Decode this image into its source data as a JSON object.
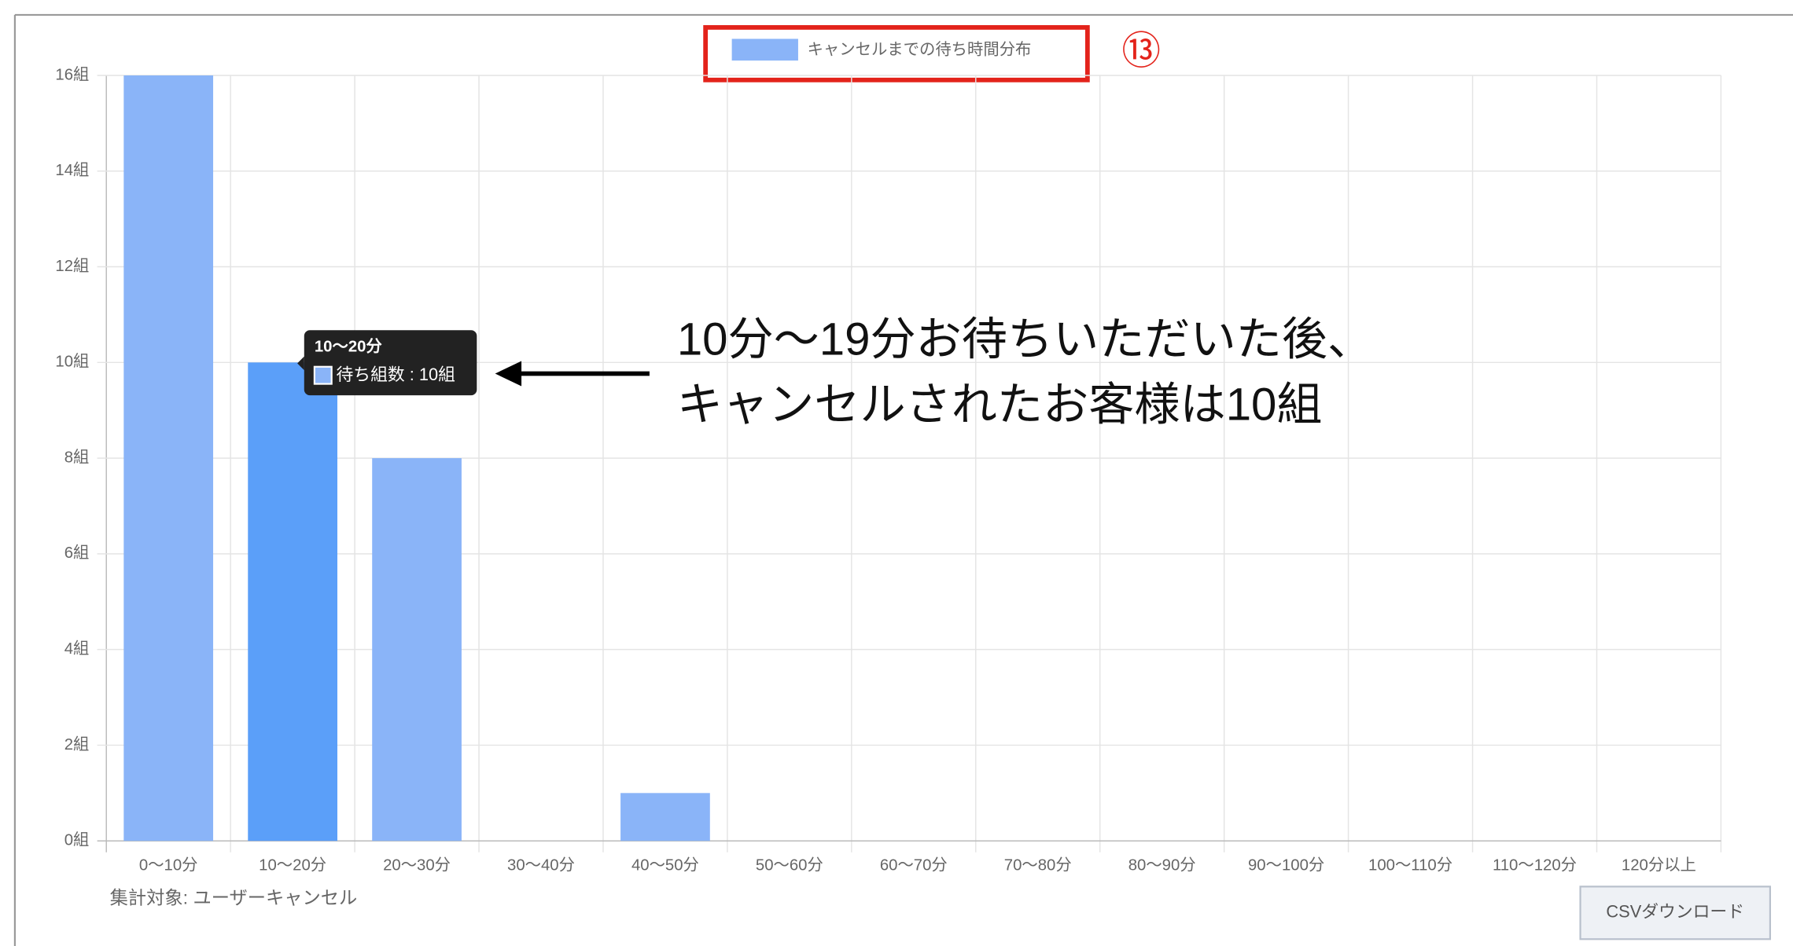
{
  "chart_data": {
    "type": "bar",
    "legend": "キャンセルまでの待ち時間分布",
    "legend_marker": "⑬",
    "categories": [
      "0〜10分",
      "10〜20分",
      "20〜30分",
      "30〜40分",
      "40〜50分",
      "50〜60分",
      "60〜70分",
      "70〜80分",
      "80〜90分",
      "90〜100分",
      "100〜110分",
      "110〜120分",
      "120分以上"
    ],
    "values": [
      16,
      10,
      8,
      0,
      1,
      0,
      0,
      0,
      0,
      0,
      0,
      0,
      0
    ],
    "color": "#8ab4f8",
    "highlight": {
      "index": 1,
      "color": "#5b9ff9"
    },
    "ylim": [
      0,
      16
    ],
    "yticks": [
      {
        "value": 0,
        "label": "0組"
      },
      {
        "value": 2,
        "label": "2組"
      },
      {
        "value": 4,
        "label": "4組"
      },
      {
        "value": 6,
        "label": "6組"
      },
      {
        "value": 8,
        "label": "8組"
      },
      {
        "value": 10,
        "label": "10組"
      },
      {
        "value": 12,
        "label": "12組"
      },
      {
        "value": 14,
        "label": "14組"
      },
      {
        "value": 16,
        "label": "16組"
      }
    ],
    "grid": true,
    "tooltip": {
      "title": "10〜20分",
      "body": "待ち組数 : 10組"
    },
    "annotation": [
      "10分〜19分お待ちいただいた後、",
      "キャンセルされたお客様は10組"
    ],
    "footnote": "集計対象: ユーザーキャンセル",
    "button": "CSVダウンロード"
  }
}
